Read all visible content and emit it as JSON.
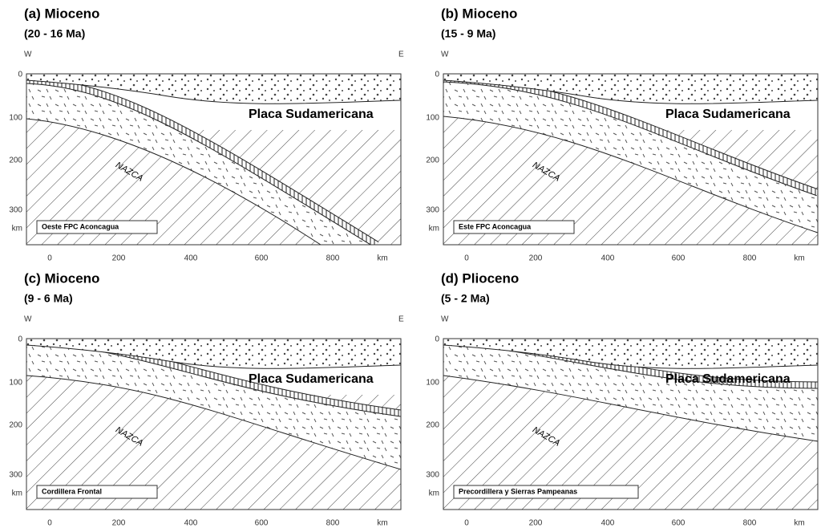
{
  "panels": [
    {
      "title": "(a) Mioceno",
      "age": "(20 - 16 Ma)",
      "west": "W",
      "east": "E",
      "plate": "Placa Sudamericana",
      "slab": "NAZCA",
      "box": "Oeste FPC Aconcagua",
      "depth_ticks": [
        "0",
        "100",
        "200",
        "300",
        "km"
      ],
      "distance_ticks": [
        "0",
        "200",
        "400",
        "600",
        "800",
        "km"
      ]
    },
    {
      "title": "(b) Mioceno",
      "age": "(15 - 9 Ma)",
      "west": "W",
      "plate": "Placa Sudamericana",
      "slab": "NAZCA",
      "box": "Este FPC Aconcagua",
      "depth_ticks": [
        "0",
        "100",
        "200",
        "300",
        "km"
      ],
      "distance_ticks": [
        "0",
        "200",
        "400",
        "600",
        "800",
        "km"
      ]
    },
    {
      "title": "(c) Mioceno",
      "age": "(9 - 6 Ma)",
      "west": "W",
      "east": "E",
      "plate": "Placa Sudamericana",
      "slab": "NAZCA",
      "box": "Cordillera Frontal",
      "depth_ticks": [
        "0",
        "100",
        "200",
        "300",
        "km"
      ],
      "distance_ticks": [
        "0",
        "200",
        "400",
        "600",
        "800",
        "km"
      ]
    },
    {
      "title": "(d) Plioceno",
      "age": "(5 - 2 Ma)",
      "west": "W",
      "plate": "Placa Sudamericana",
      "slab": "NAZCA",
      "box": "Precordillera y Sierras Pampeanas",
      "depth_ticks": [
        "0",
        "100",
        "200",
        "300",
        "km"
      ],
      "distance_ticks": [
        "0",
        "200",
        "400",
        "600",
        "800",
        "km"
      ]
    }
  ]
}
